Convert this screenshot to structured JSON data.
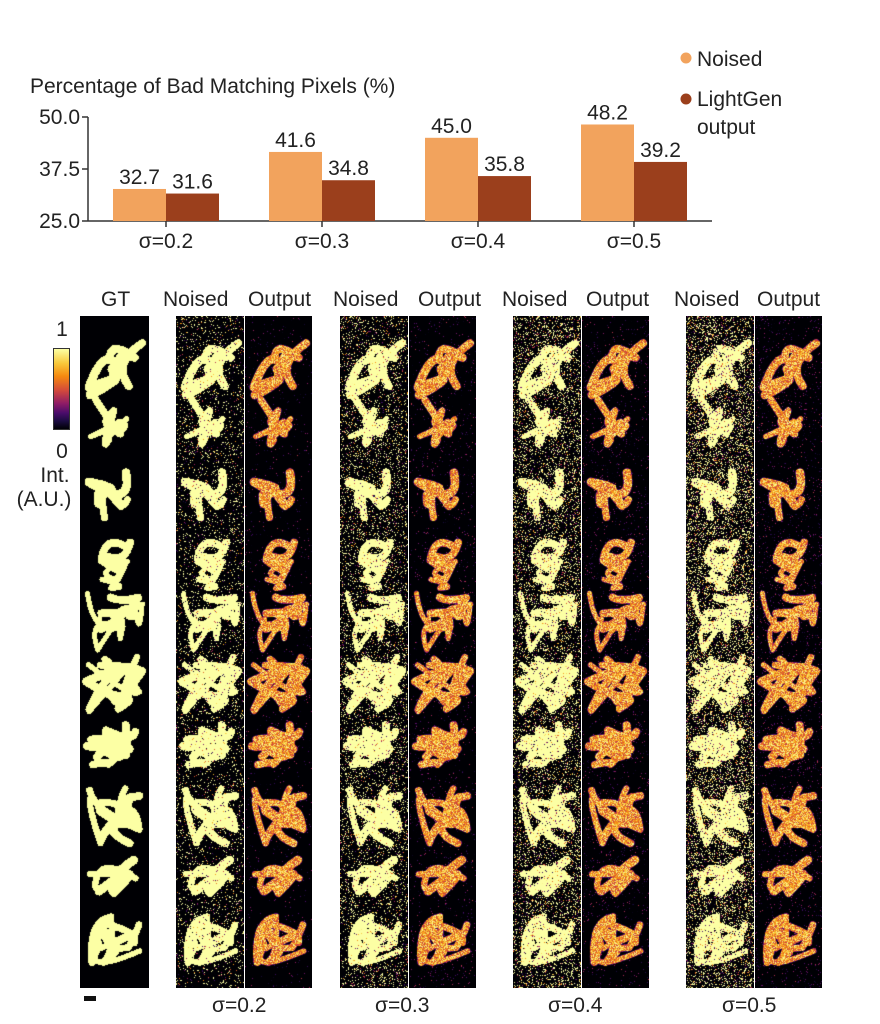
{
  "chart_data": {
    "type": "bar",
    "title": "Percentage of Bad Matching Pixels (%)",
    "categories": [
      "σ=0.2",
      "σ=0.3",
      "σ=0.4",
      "σ=0.5"
    ],
    "series": [
      {
        "name": "Noised",
        "values": [
          32.7,
          41.6,
          45.0,
          48.2
        ],
        "labels": [
          "32.7",
          "41.6",
          "45.0",
          "48.2"
        ],
        "color": "#f2a35d"
      },
      {
        "name": "LightGen output",
        "values": [
          31.6,
          34.8,
          35.8,
          39.2
        ],
        "labels": [
          "31.6",
          "34.8",
          "35.8",
          "39.2"
        ],
        "color": "#9b3f1c"
      }
    ],
    "legend": {
      "entries": [
        "Noised",
        "LightGen\noutput"
      ],
      "placement": "top-right"
    },
    "ylim": [
      25.0,
      50.0
    ],
    "yticks": [
      "25.0",
      "37.5",
      "50.0"
    ],
    "ytick_values": [
      25.0,
      37.5,
      50.0
    ],
    "xlabel": "",
    "ylabel": ""
  },
  "images": {
    "gt_label": "GT",
    "noised_label": "Noised",
    "output_label": "Output",
    "groups": [
      "σ=0.2",
      "σ=0.3",
      "σ=0.4",
      "σ=0.5"
    ],
    "noise_sigma": [
      0.2,
      0.3,
      0.4,
      0.5
    ]
  },
  "colorbar": {
    "max_label": "1",
    "min_label": "0",
    "unit_label_1": "Int.",
    "unit_label_2": "(A.U.)",
    "colormap": "inferno"
  }
}
